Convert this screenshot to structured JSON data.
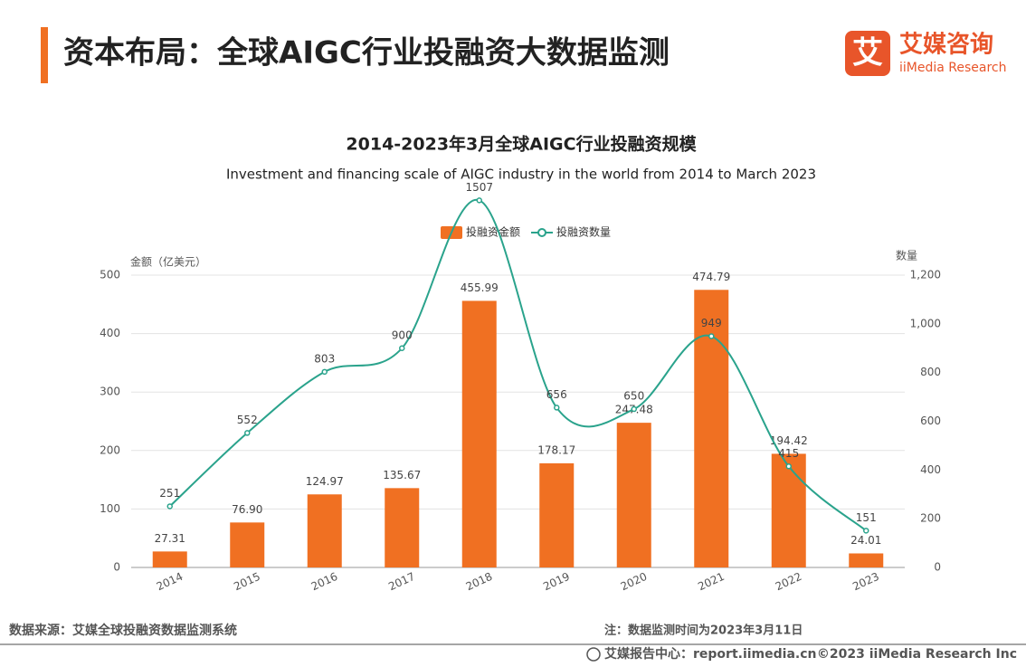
{
  "header": {
    "title": "资本布局：全球AIGC行业投融资大数据监测",
    "logo_mark": "艾",
    "logo_name": "艾媒咨询",
    "logo_sub": "iiMedia Research"
  },
  "chart_data": {
    "type": "bar",
    "title": "2014-2023年3月全球AIGC行业投融资规模",
    "subtitle": "Investment and financing scale of AIGC industry in the world from 2014 to March 2023",
    "y_label": "金额（亿美元）",
    "y2_label": "数量",
    "categories": [
      "2014",
      "2015",
      "2016",
      "2017",
      "2018",
      "2019",
      "2020",
      "2021",
      "2022",
      "2023"
    ],
    "series": [
      {
        "name": "投融资金额",
        "type": "bar",
        "color": "#f07022",
        "values": [
          27.31,
          76.9,
          124.97,
          135.67,
          455.99,
          178.17,
          247.48,
          474.79,
          194.42,
          24.01
        ],
        "value_labels": [
          "27.31",
          "76.90",
          "124.97",
          "135.67",
          "455.99",
          "178.17",
          "247.48",
          "474.79",
          "194.42",
          "24.01"
        ]
      },
      {
        "name": "投融资数量",
        "type": "line",
        "axis": "y2",
        "color": "#2aa38c",
        "values": [
          251,
          552,
          803,
          900,
          1507,
          656,
          650,
          949,
          415,
          151
        ]
      }
    ],
    "ylim": [
      0,
      500
    ],
    "yticks": [
      0,
      100,
      200,
      300,
      400,
      500
    ],
    "y2lim": [
      0,
      1200
    ],
    "y2ticks": [
      0,
      200,
      400,
      600,
      800,
      {
        "value": 1000,
        "label": "1,000"
      },
      {
        "value": 1200,
        "label": "1,200"
      }
    ],
    "grid": true,
    "legend": "top"
  },
  "footer": {
    "source": "数据来源：艾媒全球投融资数据监测系统",
    "note": "注：数据监测时间为2023年3月11日",
    "site": "艾媒报告中心：report.iimedia.cn",
    "copyright": "©2023  iiMedia Research  Inc"
  }
}
